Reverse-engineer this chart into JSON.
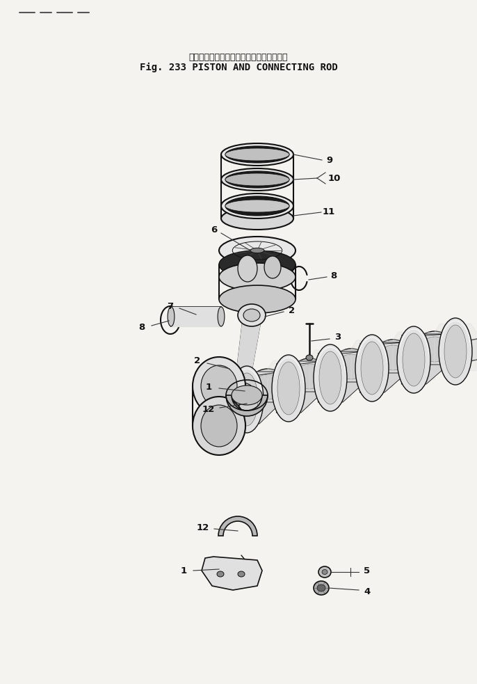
{
  "title_japanese": "ピストン　および　コネクティング　ロド",
  "title_english": "Fig. 233 PISTON AND CONNECTING ROD",
  "bg_color": "#f5f3ef",
  "line_color": "#111111",
  "title_color": "#111111",
  "fig_width": 6.86,
  "fig_height": 9.83,
  "dpi": 100
}
